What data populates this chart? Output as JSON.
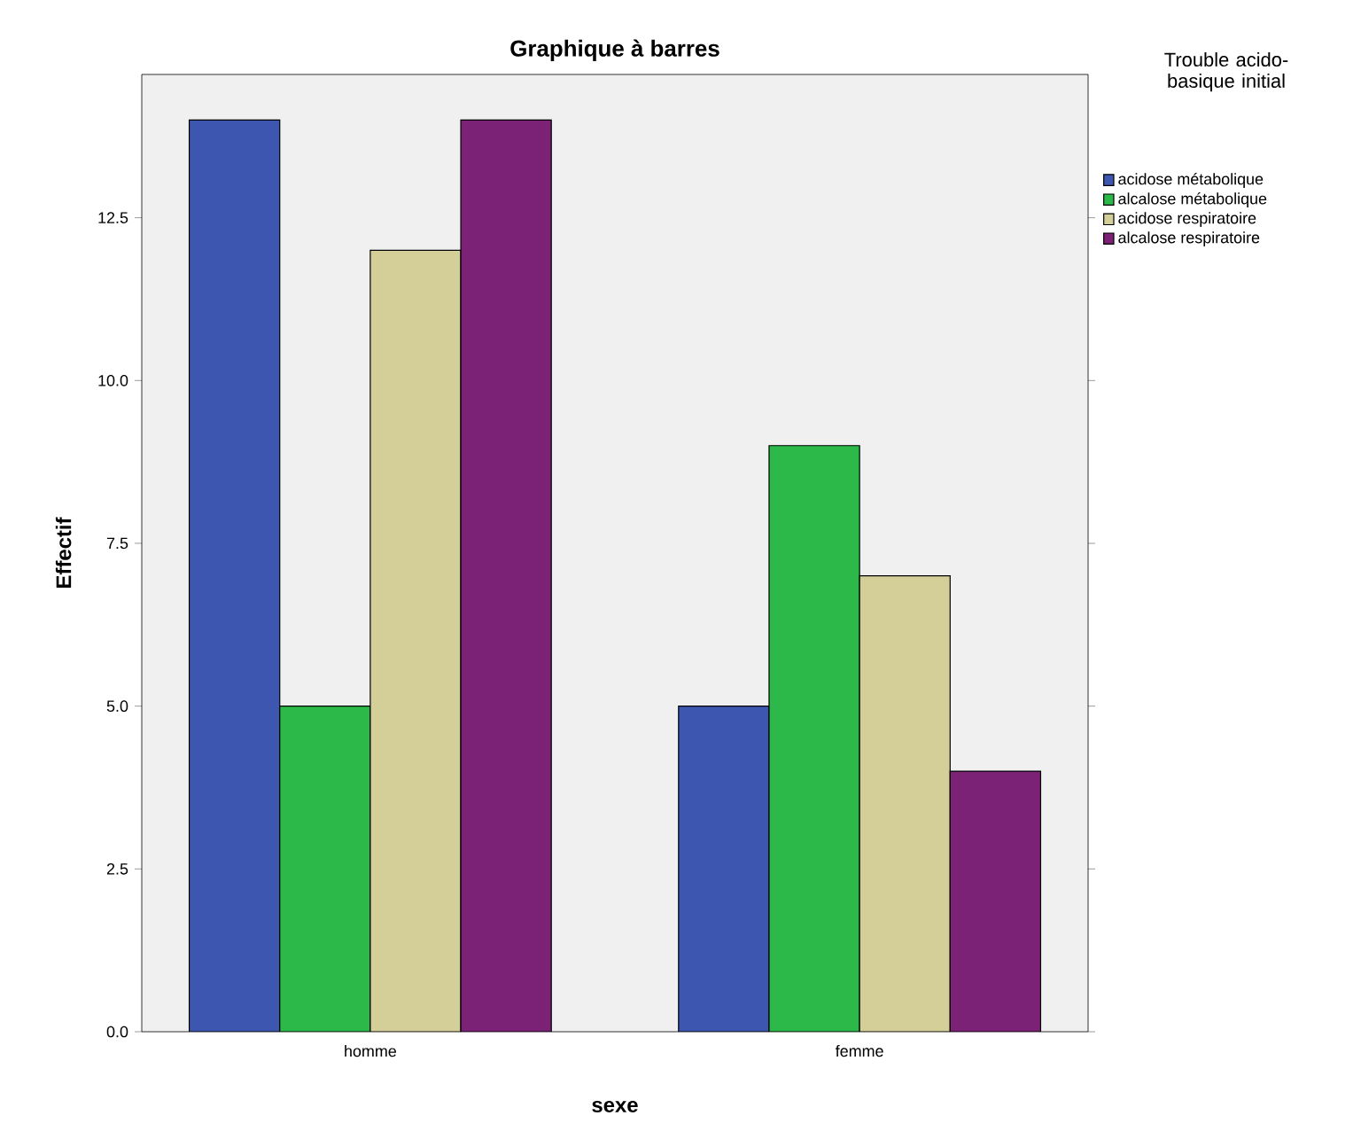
{
  "chart_data": {
    "type": "bar",
    "title": "Graphique à barres",
    "xlabel": "sexe",
    "ylabel": "Effectif",
    "legend_title": "Trouble acido-basique initial",
    "categories": [
      "homme",
      "femme"
    ],
    "series": [
      {
        "name": "acidose métabolique",
        "color": "#3d57b0",
        "values": [
          14,
          5
        ]
      },
      {
        "name": "alcalose métabolique",
        "color": "#2db84a",
        "values": [
          5,
          9
        ]
      },
      {
        "name": "acidose respiratoire",
        "color": "#d4cf98",
        "values": [
          12,
          7
        ]
      },
      {
        "name": "alcalose respiratoire",
        "color": "#7b2277",
        "values": [
          14,
          4
        ]
      }
    ],
    "ylim": [
      0,
      14.7
    ],
    "yticks": [
      {
        "value": 0,
        "label": "0.0"
      },
      {
        "value": 2.5,
        "label": "2.5"
      },
      {
        "value": 5,
        "label": "5.0"
      },
      {
        "value": 7.5,
        "label": "7.5"
      },
      {
        "value": 10,
        "label": "10.0"
      },
      {
        "value": 12.5,
        "label": "12.5"
      }
    ],
    "legend": "right"
  }
}
